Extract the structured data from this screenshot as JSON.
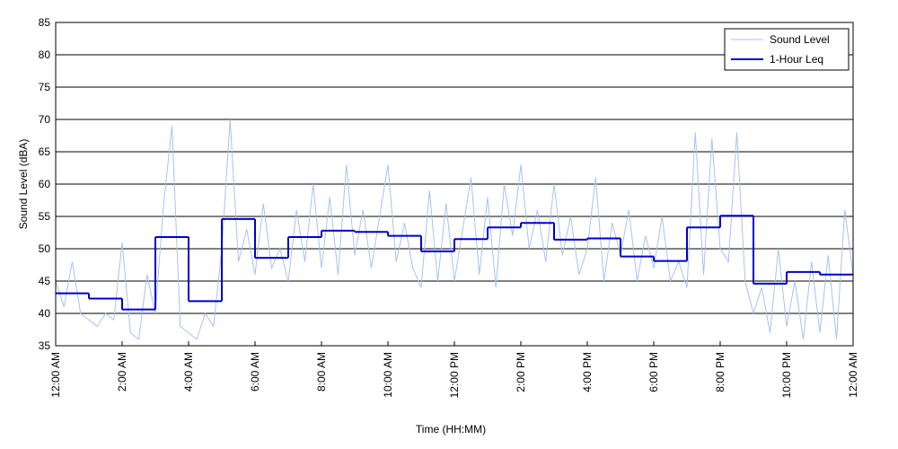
{
  "chart_data": {
    "type": "line",
    "xlabel": "Time (HH:MM)",
    "ylabel": "Sound Level (dBA)",
    "xlim": [
      0,
      24
    ],
    "xticks": [
      {
        "value": 0,
        "label": "12:00 AM"
      },
      {
        "value": 2,
        "label": "2:00 AM"
      },
      {
        "value": 4,
        "label": "4:00 AM"
      },
      {
        "value": 6,
        "label": "6:00 AM"
      },
      {
        "value": 8,
        "label": "8:00 AM"
      },
      {
        "value": 10,
        "label": "10:00 AM"
      },
      {
        "value": 12,
        "label": "12:00 PM"
      },
      {
        "value": 14,
        "label": "2:00 PM"
      },
      {
        "value": 16,
        "label": "4:00 PM"
      },
      {
        "value": 18,
        "label": "6:00 PM"
      },
      {
        "value": 20,
        "label": "8:00 PM"
      },
      {
        "value": 22,
        "label": "10:00 PM"
      },
      {
        "value": 24,
        "label": "12:00 AM"
      }
    ],
    "ylim": [
      35,
      85
    ],
    "yticks": [
      35,
      40,
      45,
      50,
      55,
      60,
      65,
      70,
      75,
      80,
      85
    ],
    "grid": true,
    "legend": "upper right",
    "series": [
      {
        "name": "Sound Level",
        "color": "#a8c2f0",
        "x": [
          0,
          0.25,
          0.5,
          0.75,
          1,
          1.25,
          1.5,
          1.75,
          2,
          2.25,
          2.5,
          2.75,
          3,
          3.25,
          3.5,
          3.75,
          4,
          4.25,
          4.5,
          4.75,
          5,
          5.25,
          5.5,
          5.75,
          6,
          6.25,
          6.5,
          6.75,
          7,
          7.25,
          7.5,
          7.75,
          8,
          8.25,
          8.5,
          8.75,
          9,
          9.25,
          9.5,
          9.75,
          10,
          10.25,
          10.5,
          10.75,
          11,
          11.25,
          11.5,
          11.75,
          12,
          12.25,
          12.5,
          12.75,
          13,
          13.25,
          13.5,
          13.75,
          14,
          14.25,
          14.5,
          14.75,
          15,
          15.25,
          15.5,
          15.75,
          16,
          16.25,
          16.5,
          16.75,
          17,
          17.25,
          17.5,
          17.75,
          18,
          18.25,
          18.5,
          18.75,
          19,
          19.25,
          19.5,
          19.75,
          20,
          20.25,
          20.5,
          20.75,
          21,
          21.25,
          21.5,
          21.75,
          22,
          22.25,
          22.5,
          22.75,
          23,
          23.25,
          23.5,
          23.75,
          24
        ],
        "values": [
          45,
          41,
          48,
          40,
          39,
          38,
          40,
          39,
          51,
          37,
          36,
          46,
          40,
          57,
          69,
          38,
          37,
          36,
          40,
          38,
          50,
          70,
          48,
          53,
          46,
          57,
          47,
          50,
          45,
          56,
          48,
          60,
          47,
          58,
          46,
          63,
          49,
          56,
          47,
          55,
          63,
          48,
          54,
          47,
          44,
          59,
          45,
          57,
          45,
          53,
          61,
          46,
          58,
          44,
          60,
          52,
          63,
          50,
          56,
          48,
          60,
          49,
          55,
          46,
          50,
          61,
          45,
          54,
          49,
          56,
          45,
          52,
          47,
          55,
          45,
          48,
          44,
          68,
          46,
          67,
          50,
          48,
          68,
          45,
          40,
          44,
          37,
          50,
          38,
          45,
          36,
          48,
          37,
          49,
          36,
          56,
          46
        ]
      },
      {
        "name": "1-Hour Leq",
        "color": "#0000cc",
        "step": true,
        "x": [
          0,
          1,
          2,
          3,
          4,
          5,
          6,
          7,
          8,
          9,
          10,
          11,
          12,
          13,
          14,
          15,
          16,
          17,
          18,
          19,
          20,
          21,
          22,
          23
        ],
        "values": [
          43.1,
          42.3,
          40.6,
          51.8,
          41.9,
          54.6,
          48.6,
          51.8,
          52.8,
          52.6,
          52.0,
          49.6,
          51.5,
          53.3,
          54.0,
          51.4,
          51.6,
          48.8,
          48.1,
          53.3,
          55.1,
          44.6,
          46.4,
          46.0
        ]
      }
    ]
  }
}
